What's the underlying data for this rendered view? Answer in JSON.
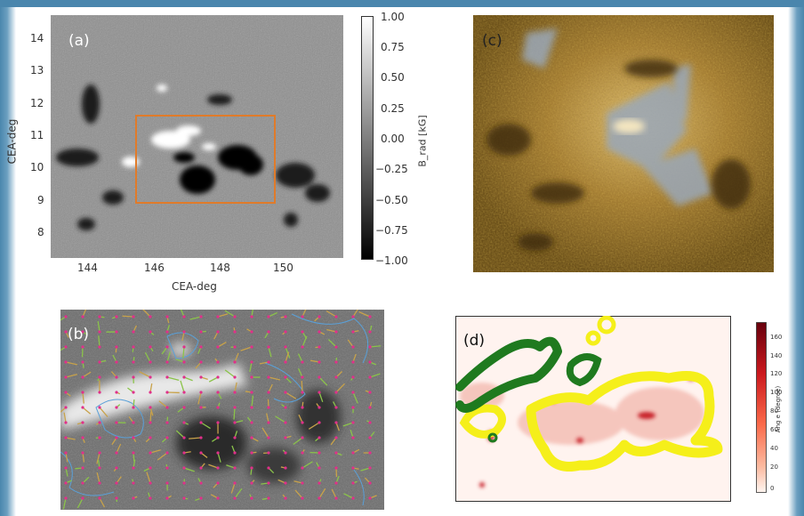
{
  "panel_a": {
    "label": "(a)",
    "xlabel": "CEA-deg",
    "ylabel": "CEA-deg",
    "xticks": [
      "144",
      "146",
      "148",
      "150"
    ],
    "yticks": [
      "14",
      "13",
      "12",
      "11",
      "10",
      "9",
      "8"
    ]
  },
  "colorbar_a": {
    "label": "B_rad [kG]",
    "ticks": [
      "1.00",
      "0.75",
      "0.50",
      "0.25",
      "0.00",
      "−0.25",
      "−0.50",
      "−0.75",
      "−1.00"
    ]
  },
  "panel_b": {
    "label": "(b)"
  },
  "panel_c": {
    "label": "(c)"
  },
  "panel_d": {
    "label": "(d)"
  },
  "colorbar_d": {
    "label": "Ang e (degree)",
    "ticks": [
      "160",
      "140",
      "120",
      "100",
      "80",
      "60",
      "40",
      "20",
      "0"
    ]
  },
  "colors": {
    "frame_blue": "#4a86ad",
    "box_orange": "#e07b2a",
    "contour_green": "#1f7a1f",
    "contour_yellow": "#f5ef1a"
  }
}
